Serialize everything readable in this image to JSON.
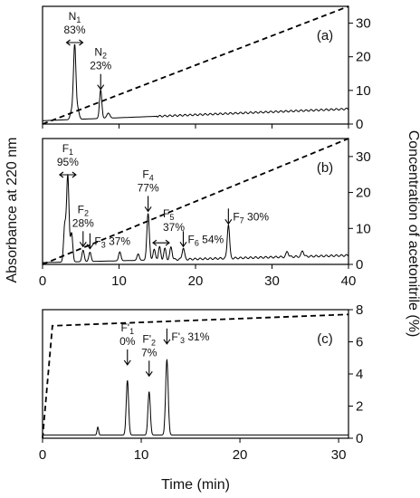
{
  "figure": {
    "y_left_title": "Absorbance at 220 nm",
    "y_right_title": "Concentration of acetonitrile (%)",
    "x_title": "Time (min)"
  },
  "chart_data": [
    {
      "panel": "(a)",
      "type": "line",
      "xlim": [
        0,
        40
      ],
      "y_right_ticks": [
        0,
        10,
        20,
        30
      ],
      "y_right_lim": [
        0,
        35
      ],
      "x_tick_labels_shown": false,
      "gradient": {
        "x": [
          0,
          40
        ],
        "y": [
          0,
          35
        ]
      },
      "annotations": [
        {
          "label": "N",
          "sub": "1",
          "pct": "83%",
          "x": 4.2,
          "marker": "range"
        },
        {
          "label": "N",
          "sub": "2",
          "pct": "23%",
          "x": 7.6,
          "marker": "arrow"
        }
      ],
      "series": [
        {
          "peaks": [
            {
              "x": 3.8,
              "h": 2.5,
              "w": 0.18
            },
            {
              "x": 4.2,
              "h": 22,
              "w": 0.16
            },
            {
              "x": 4.6,
              "h": 3.0,
              "w": 0.18
            },
            {
              "x": 7.6,
              "h": 8.5,
              "w": 0.15
            },
            {
              "x": 8.6,
              "h": 1.5,
              "w": 0.2
            }
          ],
          "baseline": [
            0,
            1.0,
            40,
            4.5
          ]
        }
      ]
    },
    {
      "panel": "(b)",
      "type": "line",
      "xlim": [
        0,
        40
      ],
      "x_ticks": [
        0,
        10,
        20,
        30,
        40
      ],
      "y_right_ticks": [
        0,
        10,
        20,
        30
      ],
      "y_right_lim": [
        0,
        35
      ],
      "gradient": {
        "x": [
          0,
          40
        ],
        "y": [
          0,
          35
        ]
      },
      "annotations": [
        {
          "label": "F",
          "sub": "1",
          "pct": "95%",
          "x": 3.3,
          "marker": "range",
          "layout": "stack"
        },
        {
          "label": "F",
          "sub": "2",
          "pct": "28%",
          "x": 5.3,
          "marker": "arrow",
          "layout": "stack"
        },
        {
          "label": "F",
          "sub": "3",
          "pct": "37%",
          "x": 6.2,
          "marker": "arrow",
          "layout": "inline"
        },
        {
          "label": "F",
          "sub": "4",
          "pct": "77%",
          "x": 13.8,
          "marker": "arrow",
          "layout": "stack"
        },
        {
          "label": "F",
          "sub": "5",
          "pct": "37%",
          "x": 15.5,
          "marker": "range",
          "layout": "stack"
        },
        {
          "label": "F",
          "sub": "6",
          "pct": "54%",
          "x": 18.4,
          "marker": "arrow",
          "layout": "inline"
        },
        {
          "label": "F",
          "sub": "7",
          "pct": "30%",
          "x": 24.3,
          "marker": "arrow",
          "layout": "inline"
        }
      ],
      "series": [
        {
          "peaks": [
            {
              "x": 2.9,
              "h": 10,
              "w": 0.15
            },
            {
              "x": 3.3,
              "h": 24,
              "w": 0.16
            },
            {
              "x": 3.8,
              "h": 8,
              "w": 0.15
            },
            {
              "x": 5.3,
              "h": 3.2,
              "w": 0.15
            },
            {
              "x": 6.2,
              "h": 2.6,
              "w": 0.15
            },
            {
              "x": 10.1,
              "h": 2.5,
              "w": 0.15
            },
            {
              "x": 12.5,
              "h": 1.8,
              "w": 0.15
            },
            {
              "x": 13.8,
              "h": 13,
              "w": 0.16
            },
            {
              "x": 14.6,
              "h": 3,
              "w": 0.15
            },
            {
              "x": 15.3,
              "h": 3.5,
              "w": 0.15
            },
            {
              "x": 16.0,
              "h": 3,
              "w": 0.15
            },
            {
              "x": 16.8,
              "h": 3.5,
              "w": 0.15
            },
            {
              "x": 18.4,
              "h": 3.2,
              "w": 0.15
            },
            {
              "x": 24.3,
              "h": 9.5,
              "w": 0.15
            },
            {
              "x": 32,
              "h": 1.5,
              "w": 0.15
            },
            {
              "x": 34,
              "h": 1.6,
              "w": 0.15
            }
          ],
          "baseline": [
            0,
            0.5,
            40,
            2.5
          ]
        }
      ]
    },
    {
      "panel": "(c)",
      "type": "line",
      "xlim": [
        0,
        31
      ],
      "x_ticks": [
        0,
        10,
        20,
        30
      ],
      "y_right_ticks": [
        0,
        2,
        4,
        6,
        8
      ],
      "y_right_lim": [
        0,
        8
      ],
      "gradient": {
        "x": [
          0,
          1,
          31
        ],
        "y": [
          0,
          7,
          7.7
        ]
      },
      "annotations": [
        {
          "label": "F'",
          "sub": "1",
          "pct": "0%",
          "x": 8.6,
          "marker": "arrow",
          "layout": "stack"
        },
        {
          "label": "F'",
          "sub": "2",
          "pct": "7%",
          "x": 10.8,
          "marker": "arrow",
          "layout": "stack"
        },
        {
          "label": "F'",
          "sub": "3",
          "pct": "31%",
          "x": 12.6,
          "marker": "arrow",
          "layout": "inline"
        }
      ],
      "series": [
        {
          "peaks": [
            {
              "x": 5.6,
              "h": 0.5,
              "w": 0.08
            },
            {
              "x": 8.6,
              "h": 3.4,
              "w": 0.12
            },
            {
              "x": 10.8,
              "h": 2.7,
              "w": 0.12
            },
            {
              "x": 12.6,
              "h": 4.7,
              "w": 0.13
            }
          ],
          "baseline": [
            0,
            0.2,
            31,
            0.2
          ]
        }
      ]
    }
  ]
}
